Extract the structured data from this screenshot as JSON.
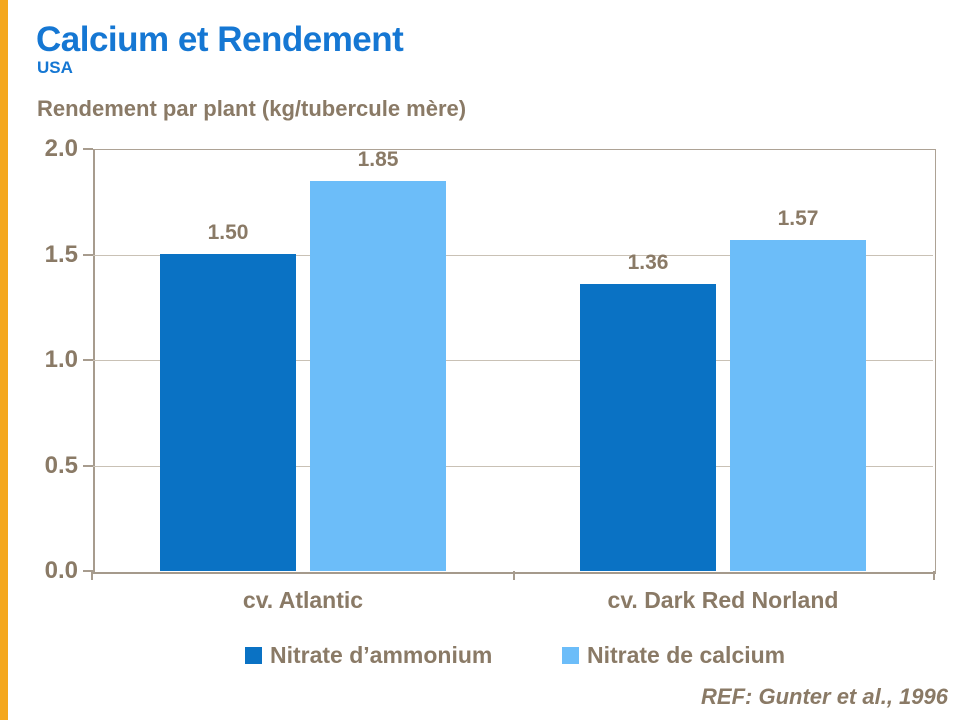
{
  "header": {
    "title": "Calcium et Rendement",
    "subtitle": "USA"
  },
  "footer": {
    "reference": "REF: Gunter et al., 1996"
  },
  "colors": {
    "accent_stripe": "#f4a71d",
    "title_blue": "#1577d3",
    "text_brown": "#8a7a66",
    "series_dark_blue": "#0a72c4",
    "series_light_blue": "#6cbdf9",
    "gridline": "#c9c1b5",
    "axis": "#a79c8e"
  },
  "chart_data": {
    "type": "bar",
    "title": "Rendement par plant (kg/tubercule mère)",
    "categories": [
      "cv. Atlantic",
      "cv. Dark Red Norland"
    ],
    "series": [
      {
        "name": "Nitrate d’ammonium",
        "color": "#0a72c4",
        "values": [
          1.5,
          1.36
        ]
      },
      {
        "name": "Nitrate de calcium",
        "color": "#6cbdf9",
        "values": [
          1.85,
          1.57
        ]
      }
    ],
    "value_labels": [
      [
        "1.50",
        "1.36"
      ],
      [
        "1.85",
        "1.57"
      ]
    ],
    "xlabel": "",
    "ylabel": "Rendement par plant (kg/tubercule mère)",
    "ylim": [
      0.0,
      2.0
    ],
    "yticks": [
      0.0,
      0.5,
      1.0,
      1.5,
      2.0
    ],
    "grid": true,
    "legend_position": "bottom"
  }
}
